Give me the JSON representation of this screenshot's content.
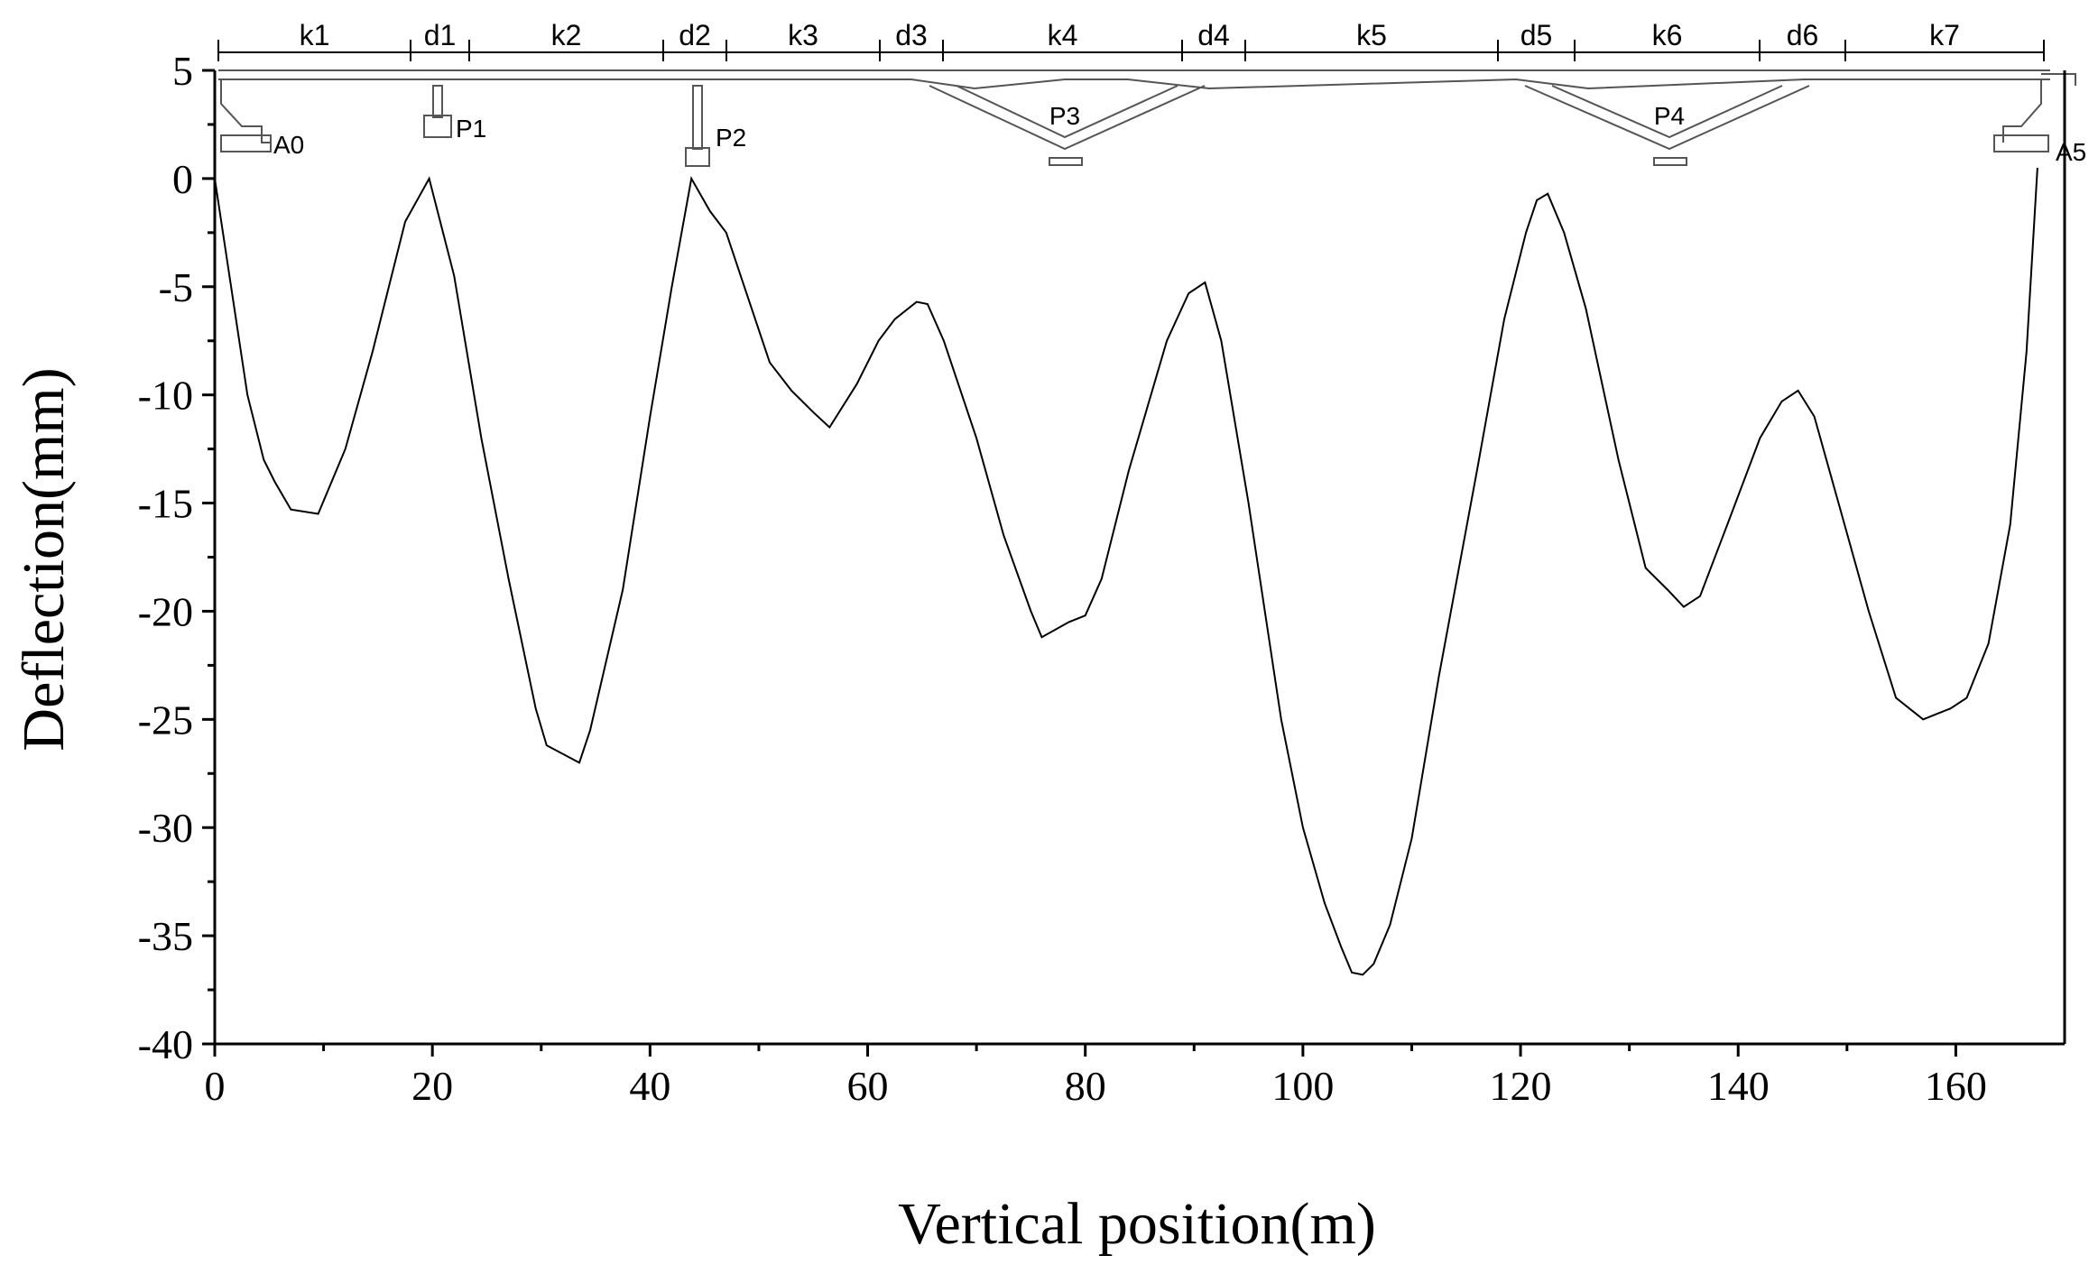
{
  "chart_data": {
    "type": "line",
    "xlabel": "Vertical position(m)",
    "ylabel": "Deflection(mm)",
    "xlim": [
      0,
      170
    ],
    "ylim": [
      -40,
      5
    ],
    "xticks": [
      0,
      20,
      40,
      60,
      80,
      100,
      120,
      140,
      160
    ],
    "yticks": [
      5,
      0,
      -5,
      -10,
      -15,
      -20,
      -25,
      -30,
      -35,
      -40
    ],
    "grid": false,
    "series": [
      {
        "x": [
          0,
          1.5,
          3,
          4.5,
          5.5,
          7,
          9.5,
          12,
          14.5,
          17.5,
          19.7,
          22,
          24.5,
          27,
          29.5,
          30.5,
          33.5,
          34.5,
          37.5,
          40,
          42,
          43.8,
          45.5,
          47,
          49,
          51,
          53,
          55,
          56.5,
          59,
          61,
          62.5,
          64.5,
          65.5,
          67,
          70,
          72.5,
          75,
          76,
          78.5,
          80,
          81.5,
          84,
          87.5,
          89.5,
          91,
          92.5,
          95,
          98,
          100,
          102,
          103.5,
          104.5,
          105.5,
          106.5,
          108,
          110,
          112.5,
          116,
          118.5,
          120.5,
          121.5,
          122.5,
          124,
          126,
          129,
          131.5,
          133.5,
          135,
          136.5,
          139,
          142,
          144,
          145.5,
          147,
          149.5,
          152,
          154.5,
          157,
          159.5,
          161,
          163,
          165,
          166.5,
          167.5
        ],
        "values": [
          0,
          -5,
          -10,
          -13,
          -14,
          -15.3,
          -15.5,
          -12.5,
          -8,
          -2,
          0,
          -4.5,
          -12,
          -18.5,
          -24.5,
          -26.2,
          -27,
          -25.5,
          -19,
          -11,
          -5,
          0,
          -1.5,
          -2.5,
          -5.5,
          -8.5,
          -9.8,
          -10.8,
          -11.5,
          -9.5,
          -7.5,
          -6.5,
          -5.7,
          -5.8,
          -7.5,
          -12,
          -16.5,
          -20,
          -21.2,
          -20.5,
          -20.2,
          -18.5,
          -13.5,
          -7.5,
          -5.3,
          -4.8,
          -7.5,
          -15,
          -25,
          -30,
          -33.5,
          -35.5,
          -36.7,
          -36.8,
          -36.3,
          -34.5,
          -30.5,
          -23,
          -13.5,
          -6.5,
          -2.5,
          -1,
          -0.7,
          -2.5,
          -6,
          -13,
          -18,
          -19,
          -19.8,
          -19.3,
          -16,
          -12,
          -10.3,
          -9.8,
          -11,
          -15.5,
          -20,
          -24,
          -25,
          -24.5,
          -24,
          -21.5,
          -16,
          -8,
          0.5
        ]
      }
    ],
    "bridge": {
      "segments": [
        "k1",
        "d1",
        "k2",
        "d2",
        "k3",
        "d3",
        "k4",
        "d4",
        "k5",
        "d5",
        "k6",
        "d6",
        "k7"
      ],
      "supports": [
        "A0",
        "P1",
        "P2",
        "P3",
        "P4",
        "A5"
      ]
    }
  }
}
